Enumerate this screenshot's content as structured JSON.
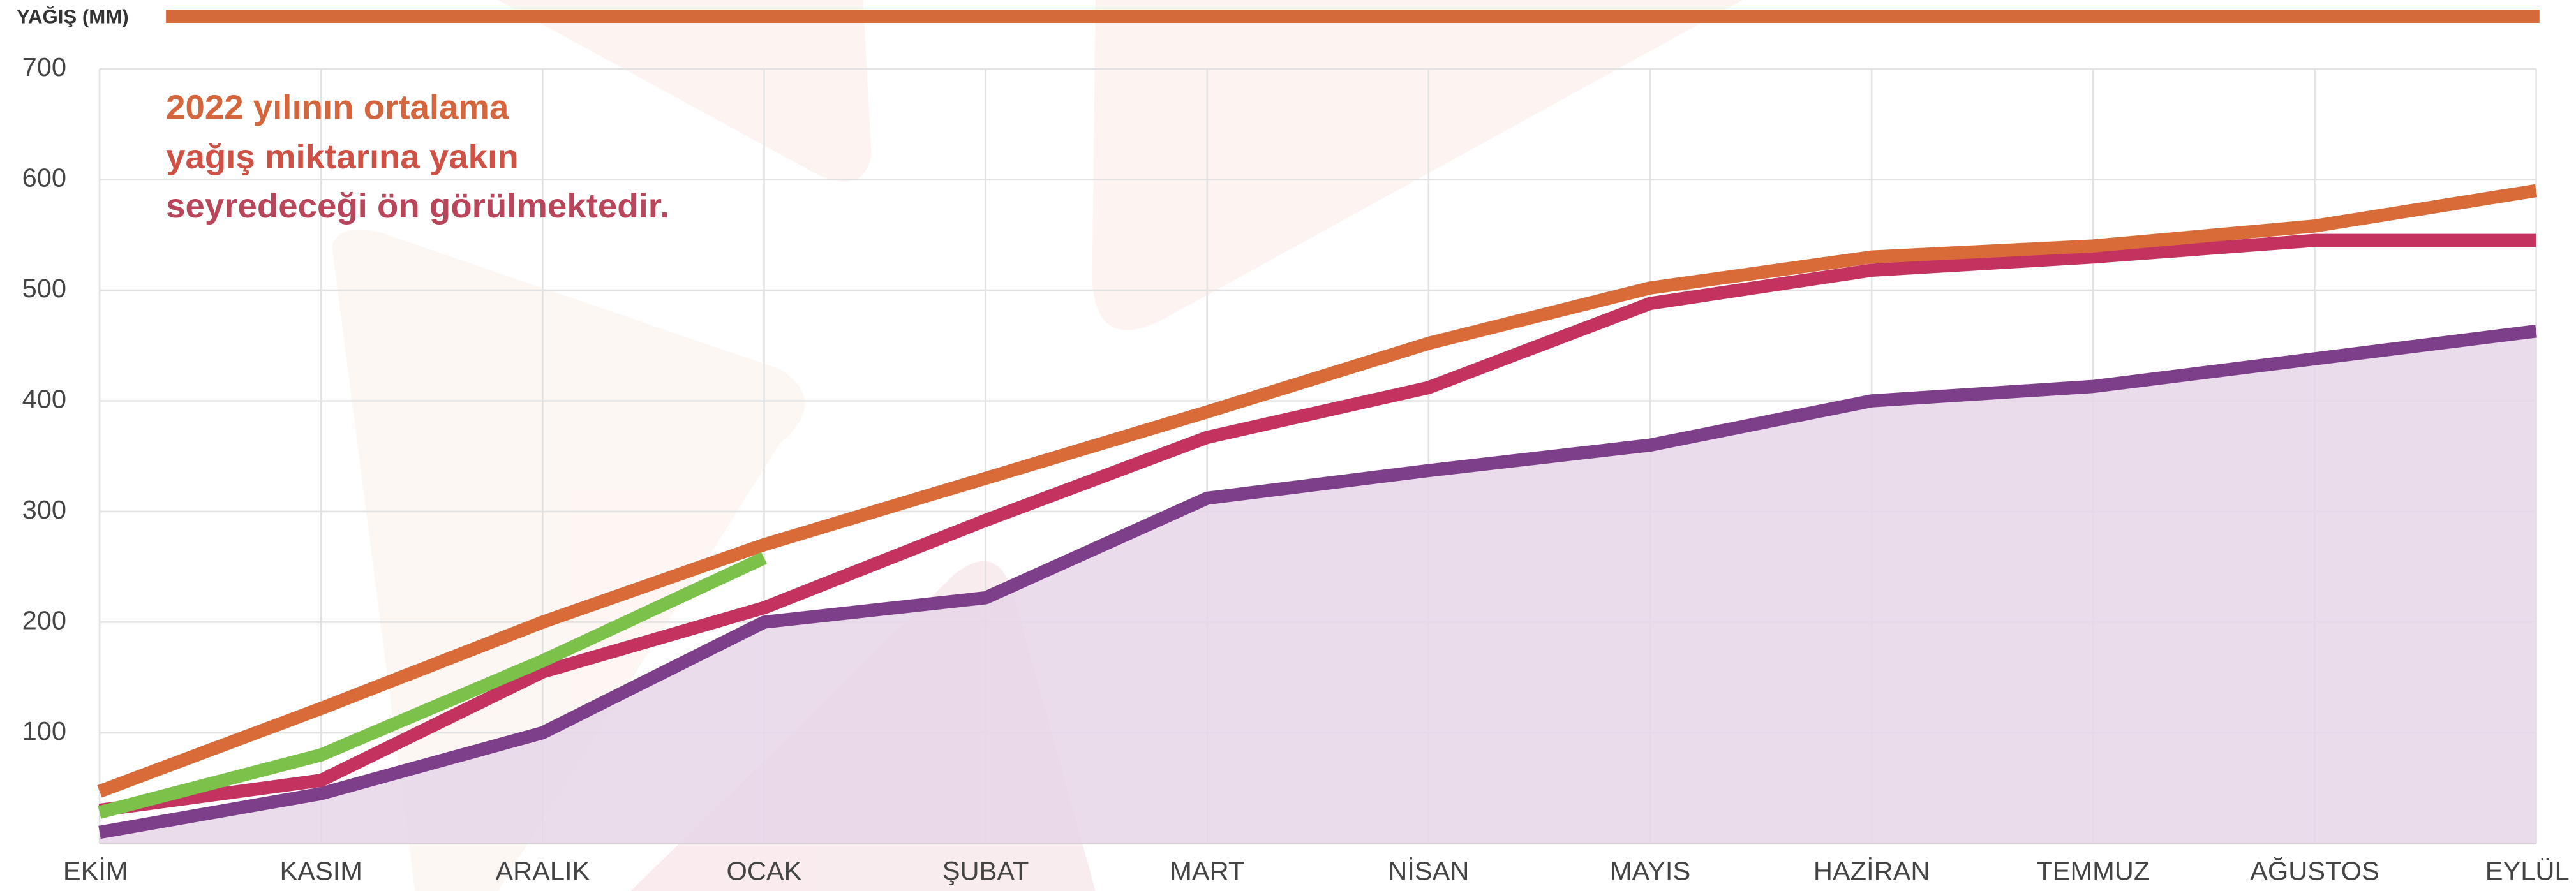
{
  "chart_data": {
    "type": "line",
    "title": "YAĞIŞ (MM)",
    "title_color": "#d4693a",
    "annotation": [
      "2022 yılının ortalama",
      "yağış miktarına yakın",
      "seyredeceği ön görülmektedir."
    ],
    "annotation_colors": [
      "#d4653c",
      "#cf5146",
      "#b8455a"
    ],
    "categories": [
      "EKİM",
      "KASIM",
      "ARALIK",
      "OCAK",
      "ŞUBAT",
      "MART",
      "NİSAN",
      "MAYIS",
      "HAZİRAN",
      "TEMMUZ",
      "AĞUSTOS",
      "EYLÜL"
    ],
    "series": [
      {
        "color": "#7e3f8a",
        "fill": "#e6d6e7",
        "values": [
          10,
          45,
          100,
          200,
          222,
          312,
          337,
          360,
          400,
          413,
          438,
          463
        ]
      },
      {
        "color": "#c4325f",
        "values": [
          30,
          57,
          155,
          213,
          292,
          367,
          412,
          488,
          518,
          530,
          545,
          545
        ]
      },
      {
        "color": "#d86b38",
        "values": [
          47,
          122,
          200,
          270,
          330,
          390,
          452,
          502,
          530,
          540,
          558,
          590
        ]
      },
      {
        "color": "#7cc24a",
        "values": [
          28,
          80,
          165,
          258,
          null,
          null,
          null,
          null,
          null,
          null,
          null,
          null
        ]
      }
    ],
    "ylim": [
      0,
      700
    ],
    "yticks": [
      100,
      200,
      300,
      400,
      500,
      600,
      700
    ],
    "grid": true
  }
}
